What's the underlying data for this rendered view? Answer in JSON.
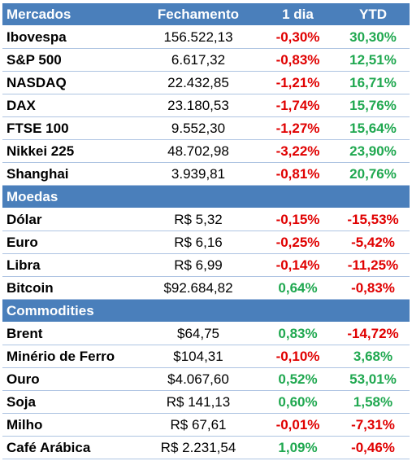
{
  "colors": {
    "header_bg": "#4a7fbb",
    "negative": "#e00000",
    "positive": "#20a850",
    "row_border": "#aec4e2"
  },
  "columns": [
    "Mercados",
    "Fechamento",
    "1 dia",
    "YTD"
  ],
  "sections": [
    {
      "title": "Mercados",
      "rows": [
        {
          "name": "Ibovespa",
          "close": "156.522,13",
          "day": "-0,30%",
          "ytd": "30,30%"
        },
        {
          "name": "S&P 500",
          "close": "6.617,32",
          "day": "-0,83%",
          "ytd": "12,51%"
        },
        {
          "name": "NASDAQ",
          "close": "22.432,85",
          "day": "-1,21%",
          "ytd": "16,71%"
        },
        {
          "name": "DAX",
          "close": "23.180,53",
          "day": "-1,74%",
          "ytd": "15,76%"
        },
        {
          "name": "FTSE 100",
          "close": "9.552,30",
          "day": "-1,27%",
          "ytd": "15,64%"
        },
        {
          "name": "Nikkei 225",
          "close": "48.702,98",
          "day": "-3,22%",
          "ytd": "23,90%"
        },
        {
          "name": "Shanghai",
          "close": "3.939,81",
          "day": "-0,81%",
          "ytd": "20,76%"
        }
      ]
    },
    {
      "title": "Moedas",
      "rows": [
        {
          "name": "Dólar",
          "close": "R$ 5,32",
          "day": "-0,15%",
          "ytd": "-15,53%"
        },
        {
          "name": "Euro",
          "close": "R$ 6,16",
          "day": "-0,25%",
          "ytd": "-5,42%"
        },
        {
          "name": "Libra",
          "close": "R$ 6,99",
          "day": "-0,14%",
          "ytd": "-11,25%"
        },
        {
          "name": "Bitcoin",
          "close": "$92.684,82",
          "day": "0,64%",
          "ytd": "-0,83%"
        }
      ]
    },
    {
      "title": "Commodities",
      "rows": [
        {
          "name": "Brent",
          "close": "$64,75",
          "day": "0,83%",
          "ytd": "-14,72%"
        },
        {
          "name": "Minério de Ferro",
          "close": "$104,31",
          "day": "-0,10%",
          "ytd": "3,68%"
        },
        {
          "name": "Ouro",
          "close": "$4.067,60",
          "day": "0,52%",
          "ytd": "53,01%"
        },
        {
          "name": "Soja",
          "close": "R$ 141,13",
          "day": "0,60%",
          "ytd": "1,58%"
        },
        {
          "name": "Milho",
          "close": "R$ 67,61",
          "day": "-0,01%",
          "ytd": "-7,31%"
        },
        {
          "name": "Café Arábica",
          "close": "R$ 2.231,54",
          "day": "1,09%",
          "ytd": "-0,46%"
        }
      ]
    }
  ]
}
